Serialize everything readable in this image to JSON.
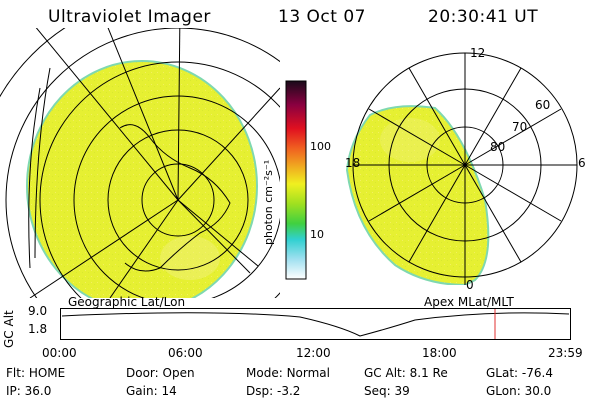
{
  "header": {
    "title": "Ultraviolet Imager",
    "date": "13 Oct 07",
    "time": "20:30:41 UT"
  },
  "colorbar": {
    "unit_label": "photon cm⁻²s⁻¹",
    "ticks": [
      "100",
      "10"
    ]
  },
  "left_panel": {
    "label": "Geographic Lat/Lon"
  },
  "right_panel": {
    "label": "Apex MLat/MLT",
    "mlt_labels": {
      "top": "12",
      "left": "18",
      "right": "6",
      "bottom": "0"
    },
    "lat_labels": [
      "60",
      "70",
      "80"
    ]
  },
  "orbit": {
    "axis_label": "GC Alt",
    "y_ticks": [
      "9.0",
      "1.8"
    ],
    "x_ticks": [
      "00:00",
      "06:00",
      "12:00",
      "18:00",
      "23:59"
    ]
  },
  "info": {
    "row1": [
      {
        "label": "Flt:",
        "value": "HOME"
      },
      {
        "label": "Door:",
        "value": "Open"
      },
      {
        "label": "Mode:",
        "value": "Normal"
      },
      {
        "label": "GC Alt:",
        "value": "8.1 Re"
      },
      {
        "label": "GLat:",
        "value": "-76.4"
      }
    ],
    "row2": [
      {
        "label": "IP:",
        "value": "36.0"
      },
      {
        "label": "Gain:",
        "value": "14"
      },
      {
        "label": "Dsp:",
        "value": "-3.2"
      },
      {
        "label": "Seq:",
        "value": "39"
      },
      {
        "label": "GLon:",
        "value": "30.0"
      }
    ]
  },
  "colors": {
    "image_fill": "#e6f032",
    "image_edge": "#7fd8b0",
    "marker": "#e03030"
  }
}
